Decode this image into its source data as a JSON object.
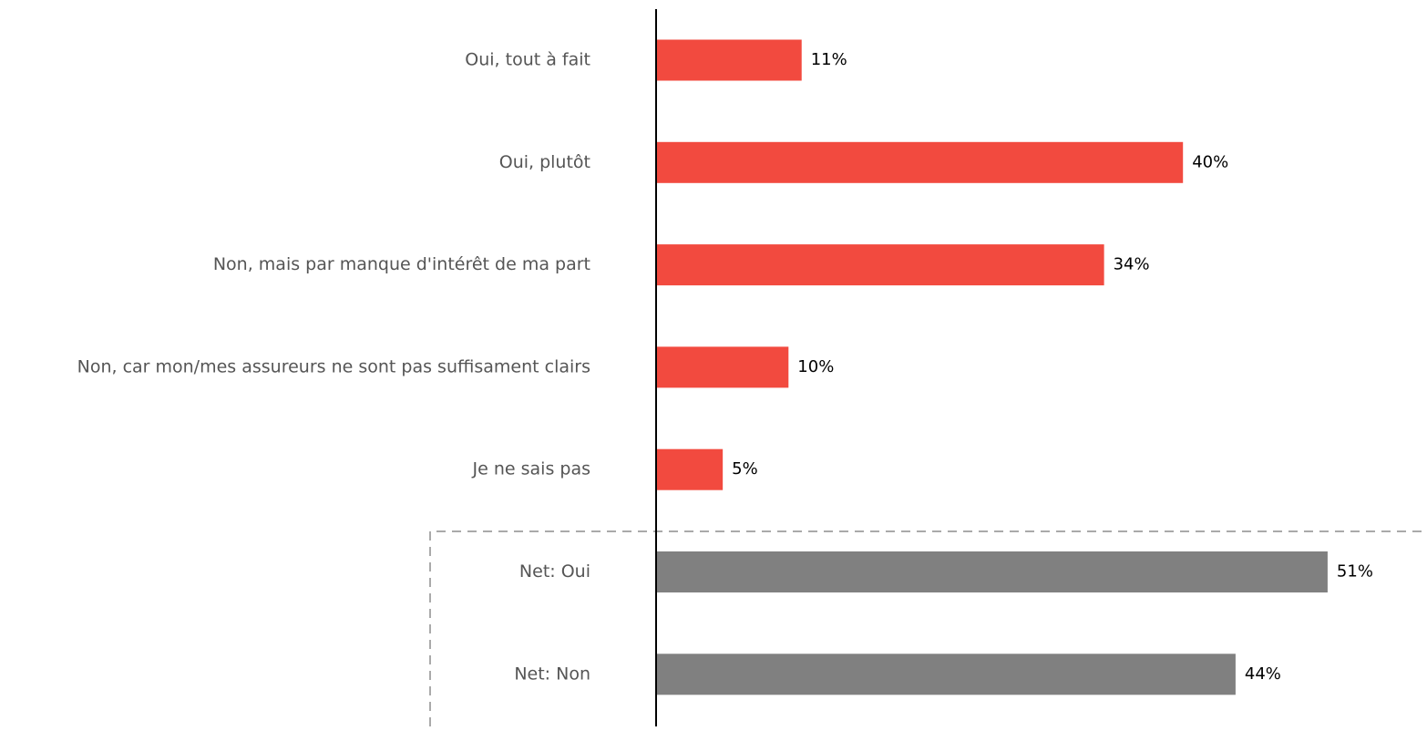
{
  "chart_data": {
    "type": "bar",
    "orientation": "horizontal",
    "categories": [
      "Oui, tout à fait",
      "Oui, plutôt",
      "Non, mais par manque d'intérêt de ma part",
      "Non, car mon/mes assureurs ne sont pas suffisament clairs",
      "Je ne sais pas",
      "Net: Oui",
      "Net: Non"
    ],
    "values": [
      11,
      40,
      34,
      10,
      5,
      51,
      44
    ],
    "value_labels": [
      "11%",
      "40%",
      "34%",
      "10%",
      "5%",
      "51%",
      "44%"
    ],
    "colors": [
      "#f24a3f",
      "#f24a3f",
      "#f24a3f",
      "#f24a3f",
      "#f24a3f",
      "#808080",
      "#808080"
    ]
  }
}
